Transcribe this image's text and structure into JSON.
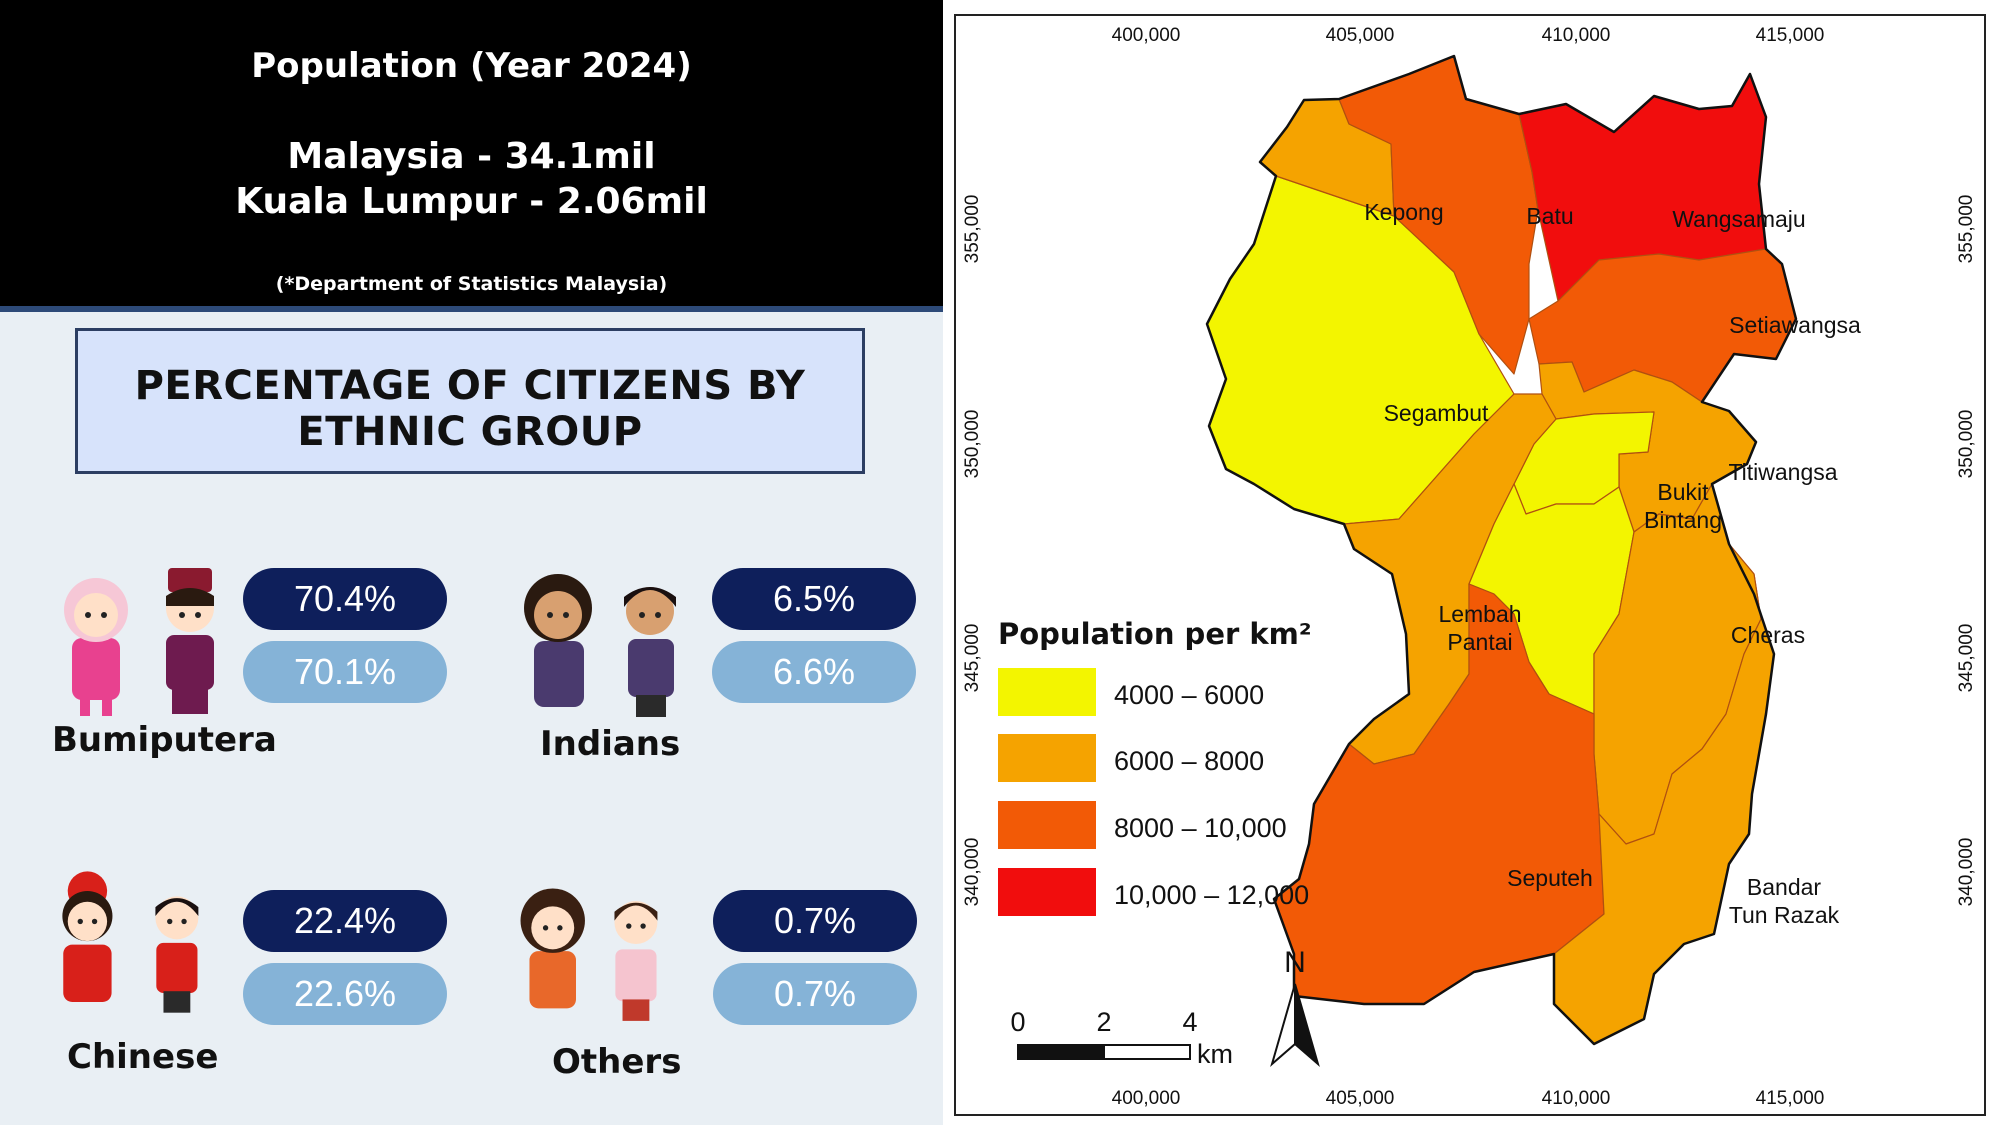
{
  "header": {
    "title": "Population (Year 2024)",
    "malaysia": "Malaysia - 34.1mil",
    "kuala_lumpur": "Kuala Lumpur - 2.06mil",
    "source": "(*Department of Statistics Malaysia)"
  },
  "ethnic": {
    "title_line1": "PERCENTAGE OF CITIZENS BY",
    "title_line2": "ETHNIC GROUP",
    "groups": [
      {
        "name": "Bumiputera",
        "value_dark": "70.4%",
        "value_light": "70.1%"
      },
      {
        "name": "Indians",
        "value_dark": "6.5%",
        "value_light": "6.6%"
      },
      {
        "name": "Chinese",
        "value_dark": "22.4%",
        "value_light": "22.6%"
      },
      {
        "name": "Others",
        "value_dark": "0.7%",
        "value_light": "0.7%"
      }
    ]
  },
  "map": {
    "x_ticks": [
      "400,000",
      "405,000",
      "410,000",
      "415,000"
    ],
    "y_ticks": [
      "355,000",
      "350,000",
      "345,000",
      "340,000"
    ],
    "districts": [
      {
        "name": "Kepong",
        "class": "6000 – 8000"
      },
      {
        "name": "Batu",
        "class": "8000 – 10,000"
      },
      {
        "name": "Wangsamaju",
        "class": "10,000 – 12,000"
      },
      {
        "name": "Setiawangsa",
        "class": "8000 – 10,000"
      },
      {
        "name": "Segambut",
        "class": "4000 – 6000"
      },
      {
        "name": "Bukit Bintang",
        "class": "4000 – 6000"
      },
      {
        "name": "Titiwangsa",
        "class": "6000 – 8000"
      },
      {
        "name": "Lembah Pantai",
        "class": "6000 – 8000"
      },
      {
        "name": "Cheras",
        "class": "6000 – 8000"
      },
      {
        "name": "Seputeh",
        "class": "8000 – 10,000"
      },
      {
        "name": "Bandar Tun Razak",
        "class": "6000 – 8000"
      }
    ],
    "district_labels": {
      "kepong": "Kepong",
      "batu": "Batu",
      "wangsamaju": "Wangsamaju",
      "setiawangsa": "Setiawangsa",
      "segambut": "Segambut",
      "bukit_bintang_1": "Bukit",
      "bukit_bintang_2": "Bintang",
      "titiwangsa": "Titiwangsa",
      "lembah_pantai_1": "Lembah",
      "lembah_pantai_2": "Pantai",
      "cheras": "Cheras",
      "seputeh": "Seputeh",
      "bandar_tun_razak_1": "Bandar",
      "bandar_tun_razak_2": "Tun Razak"
    },
    "legend": {
      "title": "Population per km²",
      "classes": [
        {
          "label": "4000 – 6000",
          "color": "#f3f500"
        },
        {
          "label": "6000 – 8000",
          "color": "#f5a300"
        },
        {
          "label": "8000 – 10,000",
          "color": "#f25a06"
        },
        {
          "label": "10,000 – 12,000",
          "color": "#f10d0d"
        }
      ]
    },
    "scale_bar": {
      "ticks": [
        "0",
        "2",
        "4"
      ],
      "unit": "km"
    },
    "north_arrow": "N"
  }
}
